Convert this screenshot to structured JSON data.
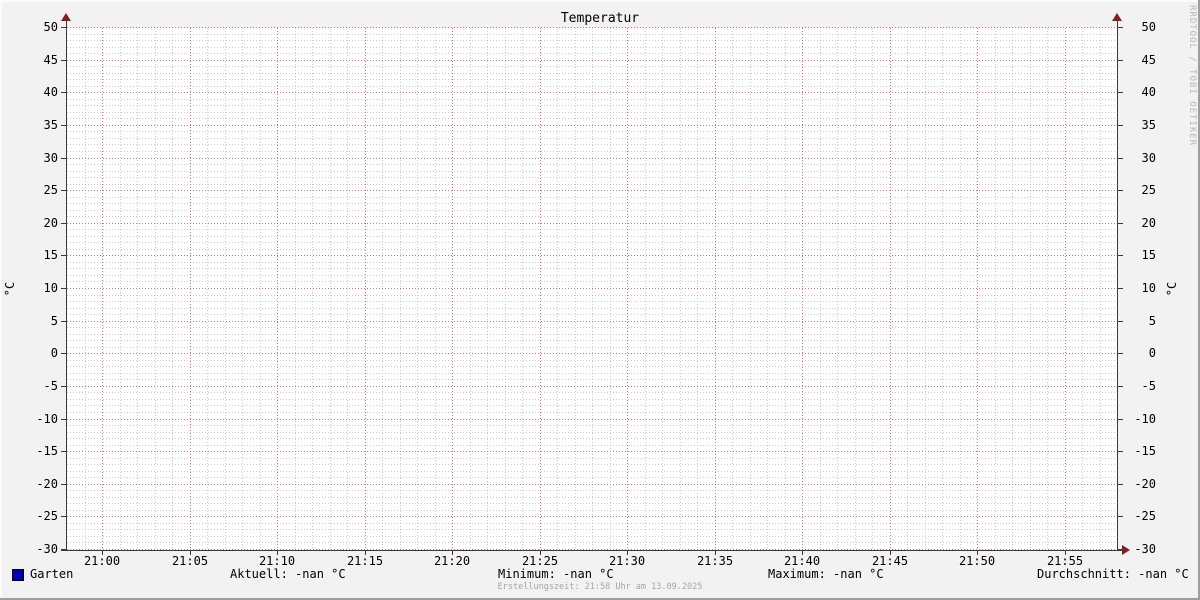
{
  "title": "Temperatur",
  "watermark": "RRDTOOL / TOBI OETIKER",
  "footer": "Erstellungszeit: 21:58 Uhr am 13.09.2025",
  "y_axis": {
    "unit": "°C"
  },
  "legend": {
    "series": [
      {
        "label": "Garten",
        "color": "#0000b4"
      }
    ],
    "stats": [
      {
        "label": "Aktuell",
        "value": "-nan °C"
      },
      {
        "label": "Minimum",
        "value": "-nan °C"
      },
      {
        "label": "Maximum",
        "value": "-nan °C"
      },
      {
        "label": "Durchschnitt",
        "value": "-nan °C"
      }
    ]
  },
  "chart_data": {
    "type": "line",
    "title": "Temperatur",
    "ylabel": "°C",
    "ylim": [
      -30,
      50
    ],
    "y_tick_step": 5,
    "y_minor_step": 1,
    "x_tick_labels": [
      "21:00",
      "21:05",
      "21:10",
      "21:15",
      "21:20",
      "21:25",
      "21:30",
      "21:35",
      "21:40",
      "21:45",
      "21:50",
      "21:55"
    ],
    "x_minor_step_minutes": 1,
    "x_major_step_minutes": 5,
    "x_start_offset_minutes": 2,
    "x_total_minutes": 60,
    "grid": true,
    "legend_position": "bottom",
    "series": [
      {
        "name": "Garten",
        "color": "#0000b4",
        "values": []
      }
    ],
    "stats": {
      "Aktuell": "-nan °C",
      "Minimum": "-nan °C",
      "Maximum": "-nan °C",
      "Durchschnitt": "-nan °C"
    }
  },
  "colors": {
    "background": "#f2f2f2",
    "canvas": "#ffffff",
    "major_grid": "#db4d4d",
    "minor_grid": "#919191",
    "axis": "#3a3a3a",
    "arrow": "#7f1f1f",
    "series_garten": "#0000b4",
    "shade_light": "#fbfbfb",
    "shade_dark": "#9e9e9e"
  }
}
